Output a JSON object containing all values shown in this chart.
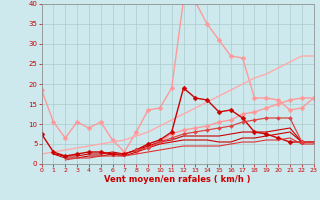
{
  "xlabel": "Vent moyen/en rafales ( km/h )",
  "xlim": [
    0,
    23
  ],
  "ylim": [
    0,
    40
  ],
  "xticks": [
    0,
    1,
    2,
    3,
    4,
    5,
    6,
    7,
    8,
    9,
    10,
    11,
    12,
    13,
    14,
    15,
    16,
    17,
    18,
    19,
    20,
    21,
    22,
    23
  ],
  "yticks": [
    0,
    5,
    10,
    15,
    20,
    25,
    30,
    35,
    40
  ],
  "bg_color": "#cde9ee",
  "grid_color": "#aacccc",
  "series": [
    {
      "comment": "light pink, big peak ~41 at x=12, with diamond markers",
      "x": [
        0,
        1,
        2,
        3,
        4,
        5,
        6,
        7,
        8,
        9,
        10,
        11,
        12,
        13,
        14,
        15,
        16,
        17,
        18,
        19,
        20,
        21,
        22,
        23
      ],
      "y": [
        18.5,
        10.5,
        6.5,
        10.5,
        9.0,
        10.5,
        6.0,
        3.0,
        8.0,
        13.5,
        14.0,
        19.0,
        41.0,
        40.5,
        35.0,
        31.0,
        27.0,
        26.5,
        16.5,
        16.5,
        16.0,
        13.5,
        14.0,
        16.5
      ],
      "color": "#ff9999",
      "marker": "D",
      "markersize": 2.5,
      "linewidth": 1.0
    },
    {
      "comment": "light pink diagonal line going up to ~27, no markers",
      "x": [
        0,
        1,
        2,
        3,
        4,
        5,
        6,
        7,
        8,
        9,
        10,
        11,
        12,
        13,
        14,
        15,
        16,
        17,
        18,
        19,
        20,
        21,
        22,
        23
      ],
      "y": [
        2.5,
        3.0,
        3.5,
        4.0,
        4.5,
        5.0,
        5.5,
        6.0,
        7.0,
        8.0,
        9.5,
        11.0,
        12.5,
        14.0,
        15.5,
        17.0,
        18.5,
        20.0,
        21.5,
        22.5,
        24.0,
        25.5,
        27.0,
        27.0
      ],
      "color": "#ffaaaa",
      "marker": null,
      "markersize": 0,
      "linewidth": 1.0
    },
    {
      "comment": "pink with diamond markers going to ~16.5 at end",
      "x": [
        0,
        1,
        2,
        3,
        4,
        5,
        6,
        7,
        8,
        9,
        10,
        11,
        12,
        13,
        14,
        15,
        16,
        17,
        18,
        19,
        20,
        21,
        22,
        23
      ],
      "y": [
        null,
        null,
        null,
        null,
        null,
        null,
        null,
        null,
        3.0,
        4.5,
        5.5,
        7.5,
        8.5,
        9.0,
        9.5,
        10.5,
        11.0,
        12.5,
        13.0,
        14.0,
        15.0,
        16.0,
        16.5,
        16.5
      ],
      "color": "#ff9999",
      "marker": "D",
      "markersize": 2.5,
      "linewidth": 1.0
    },
    {
      "comment": "dark red with diamond markers, peak ~19 at x=12",
      "x": [
        0,
        1,
        2,
        3,
        4,
        5,
        6,
        7,
        8,
        9,
        10,
        11,
        12,
        13,
        14,
        15,
        16,
        17,
        18,
        19,
        20,
        21,
        22,
        23
      ],
      "y": [
        7.5,
        3.0,
        2.0,
        2.5,
        3.0,
        3.0,
        2.5,
        2.5,
        3.5,
        5.0,
        6.0,
        8.0,
        19.0,
        16.5,
        16.0,
        13.0,
        13.5,
        11.5,
        8.0,
        7.5,
        6.5,
        5.5,
        5.5,
        null
      ],
      "color": "#cc0000",
      "marker": "D",
      "markersize": 2.5,
      "linewidth": 1.0
    },
    {
      "comment": "dark red thin line, nearly flat ~5-8",
      "x": [
        0,
        1,
        2,
        3,
        4,
        5,
        6,
        7,
        8,
        9,
        10,
        11,
        12,
        13,
        14,
        15,
        16,
        17,
        18,
        19,
        20,
        21,
        22,
        23
      ],
      "y": [
        null,
        2.5,
        1.5,
        1.5,
        2.0,
        2.0,
        2.5,
        2.0,
        3.0,
        4.0,
        5.0,
        5.5,
        6.0,
        6.0,
        6.0,
        5.5,
        5.5,
        6.5,
        6.5,
        7.0,
        7.5,
        8.0,
        5.5,
        5.5
      ],
      "color": "#cc0000",
      "marker": null,
      "markersize": 0,
      "linewidth": 0.8
    },
    {
      "comment": "dark red thin line, slightly above prev",
      "x": [
        0,
        1,
        2,
        3,
        4,
        5,
        6,
        7,
        8,
        9,
        10,
        11,
        12,
        13,
        14,
        15,
        16,
        17,
        18,
        19,
        20,
        21,
        22,
        23
      ],
      "y": [
        null,
        2.5,
        2.0,
        2.0,
        2.5,
        2.5,
        3.0,
        2.5,
        3.5,
        4.5,
        5.5,
        6.0,
        7.0,
        7.0,
        7.0,
        7.0,
        7.5,
        8.0,
        8.0,
        8.0,
        8.5,
        9.0,
        5.5,
        5.5
      ],
      "color": "#cc0000",
      "marker": null,
      "markersize": 0,
      "linewidth": 0.8
    },
    {
      "comment": "medium red nearly flat low line",
      "x": [
        0,
        1,
        2,
        3,
        4,
        5,
        6,
        7,
        8,
        9,
        10,
        11,
        12,
        13,
        14,
        15,
        16,
        17,
        18,
        19,
        20,
        21,
        22,
        23
      ],
      "y": [
        null,
        null,
        1.0,
        1.5,
        1.5,
        2.0,
        2.0,
        2.0,
        2.5,
        3.0,
        3.5,
        4.0,
        4.5,
        4.5,
        4.5,
        4.5,
        5.0,
        5.5,
        5.5,
        6.0,
        6.0,
        6.5,
        5.0,
        5.0
      ],
      "color": "#dd3333",
      "marker": null,
      "markersize": 0,
      "linewidth": 0.8
    },
    {
      "comment": "medium red with small markers, ~10 range",
      "x": [
        0,
        1,
        2,
        3,
        4,
        5,
        6,
        7,
        8,
        9,
        10,
        11,
        12,
        13,
        14,
        15,
        16,
        17,
        18,
        19,
        20,
        21,
        22,
        23
      ],
      "y": [
        null,
        null,
        null,
        null,
        null,
        null,
        null,
        null,
        3.5,
        4.0,
        5.5,
        6.5,
        7.5,
        8.0,
        8.5,
        9.0,
        9.5,
        10.5,
        11.0,
        11.5,
        11.5,
        11.5,
        5.5,
        5.5
      ],
      "color": "#dd4444",
      "marker": "D",
      "markersize": 2.0,
      "linewidth": 0.9
    }
  ]
}
